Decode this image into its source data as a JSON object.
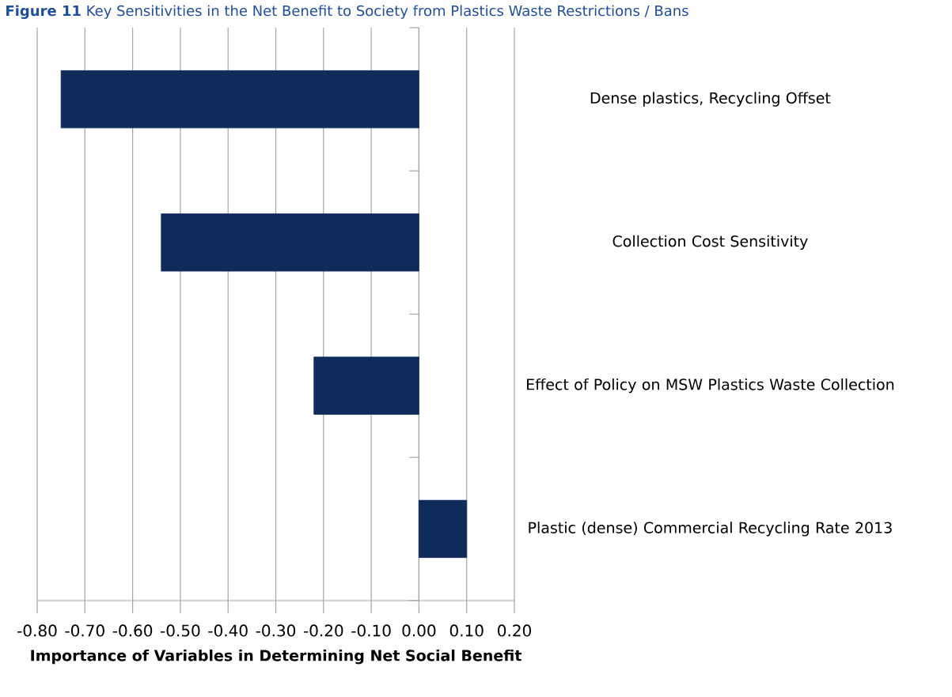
{
  "chart_data": {
    "type": "bar",
    "orientation": "horizontal",
    "title": "**Figure 11** Key Sensitivities in the Net Benefit to Society from Plastics Waste Restrictions / Bans",
    "xlabel": "Importance of Variables in Determining Net Social Benefit",
    "categories": [
      "Dense plastics, Recycling Offset",
      "Collection Cost Sensitivity",
      "Effect of Policy on MSW Plastics Waste Collection",
      "Plastic (dense) Commercial Recycling Rate 2013"
    ],
    "values": [
      -0.75,
      -0.54,
      -0.22,
      0.1
    ],
    "color": "#0f2b5b",
    "xlim": [
      -0.8,
      0.2
    ],
    "xticks": [
      {
        "value": -0.8,
        "label": "-0.80"
      },
      {
        "value": -0.7,
        "label": "-0.70"
      },
      {
        "value": -0.6,
        "label": "-0.60"
      },
      {
        "value": -0.5,
        "label": "-0.50"
      },
      {
        "value": -0.4,
        "label": "-0.40"
      },
      {
        "value": -0.3,
        "label": "-0.30"
      },
      {
        "value": -0.2,
        "label": "-0.20"
      },
      {
        "value": -0.1,
        "label": "-0.10"
      },
      {
        "value": 0,
        "label": "0.00"
      },
      {
        "value": 0.1,
        "label": "0.10"
      },
      {
        "value": 0.2,
        "label": "0.20"
      }
    ],
    "grid": "x"
  }
}
